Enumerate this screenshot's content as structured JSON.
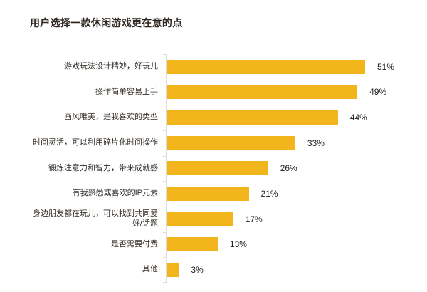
{
  "title": "用户选择一款休闲游戏更在意的点",
  "colors": {
    "background": "#ffffff",
    "bar": "#f2b51c",
    "axis": "#dcdcdc",
    "title_text": "#2e2620",
    "label_text": "#332d28",
    "value_text": "#1f1a16"
  },
  "chart_data": {
    "type": "bar",
    "orientation": "horizontal",
    "title": "用户选择一款休闲游戏更在意的点",
    "categories": [
      "游戏玩法设计精妙，好玩儿",
      "操作简单容易上手",
      "画风唯美，是我喜欢的类型",
      "时间灵活，可以利用碎片化时间操作",
      "锻炼注意力和智力，带来成就感",
      "有我熟悉或喜欢的IP元素",
      "身边朋友都在玩儿，可以找到共同爱好/话题",
      "是否需要付费",
      "其他"
    ],
    "values": [
      51,
      49,
      44,
      33,
      26,
      21,
      17,
      13,
      3
    ],
    "value_labels": [
      "51%",
      "49%",
      "44%",
      "33%",
      "26%",
      "21%",
      "17%",
      "13%",
      "3%"
    ],
    "unit": "%",
    "xlabel": "",
    "ylabel": "",
    "xlim": [
      0,
      51
    ],
    "grid": false,
    "legend": "none",
    "bar_color": "#f2b51c"
  }
}
